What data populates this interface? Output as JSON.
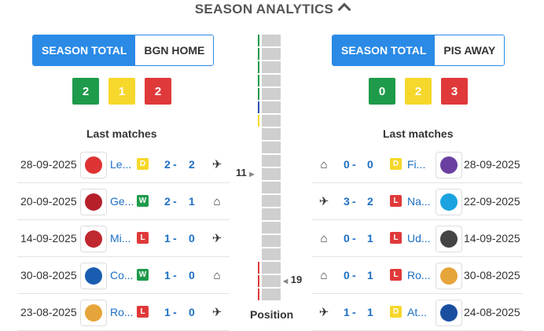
{
  "title": "SEASON ANALYTICS",
  "left": {
    "toggle": {
      "active": "SEASON TOTAL",
      "other": "BGN HOME"
    },
    "badges": [
      "2",
      "1",
      "2"
    ],
    "last_matches_title": "Last matches",
    "matches": [
      {
        "date": "28-09-2025",
        "team": "Le...",
        "result": "D",
        "score_a": "2",
        "score_b": "2",
        "venue": "away",
        "logo_color": "#d33"
      },
      {
        "date": "20-09-2025",
        "team": "Ge...",
        "result": "W",
        "score_a": "2",
        "score_b": "1",
        "venue": "home",
        "logo_color": "#b5202a"
      },
      {
        "date": "14-09-2025",
        "team": "Mi...",
        "result": "L",
        "score_a": "1",
        "score_b": "0",
        "venue": "away",
        "logo_color": "#c0282f"
      },
      {
        "date": "30-08-2025",
        "team": "Co...",
        "result": "W",
        "score_a": "1",
        "score_b": "0",
        "venue": "home",
        "logo_color": "#1a5db0"
      },
      {
        "date": "23-08-2025",
        "team": "Ro...",
        "result": "L",
        "score_a": "1",
        "score_b": "0",
        "venue": "away",
        "logo_color": "#e6a53a"
      }
    ]
  },
  "right": {
    "toggle": {
      "active": "SEASON TOTAL",
      "other": "PIS AWAY"
    },
    "badges": [
      "0",
      "2",
      "3"
    ],
    "last_matches_title": "Last matches",
    "matches": [
      {
        "date": "28-09-2025",
        "team": "Fi...",
        "result": "D",
        "score_a": "0",
        "score_b": "0",
        "venue": "home",
        "logo_color": "#6b3fa0"
      },
      {
        "date": "22-09-2025",
        "team": "Na...",
        "result": "L",
        "score_a": "3",
        "score_b": "2",
        "venue": "away",
        "logo_color": "#1aa3e0"
      },
      {
        "date": "14-09-2025",
        "team": "Ud...",
        "result": "L",
        "score_a": "0",
        "score_b": "1",
        "venue": "home",
        "logo_color": "#444"
      },
      {
        "date": "30-08-2025",
        "team": "Ro...",
        "result": "L",
        "score_a": "0",
        "score_b": "1",
        "venue": "home",
        "logo_color": "#e6a53a"
      },
      {
        "date": "24-08-2025",
        "team": "At...",
        "result": "D",
        "score_a": "1",
        "score_b": "1",
        "venue": "away",
        "logo_color": "#1a4fa0"
      }
    ]
  },
  "position": {
    "left": "11",
    "right": "19",
    "label": "Position",
    "total_positions": 20
  },
  "colors": {
    "win": "#1e9b4a",
    "draw": "#f6d72b",
    "loss": "#e0393a",
    "accent": "#2a8ae6"
  }
}
